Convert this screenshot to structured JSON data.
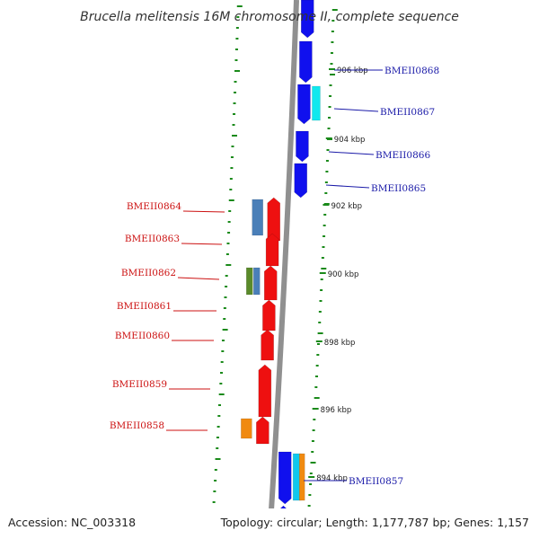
{
  "title": "Brucella melitensis 16M chromosome II, complete sequence",
  "footer": {
    "accession": "Accession: NC_003318",
    "topology": "Topology: circular; Length: 1,177,787 bp; Genes: 1,157"
  },
  "colors": {
    "forward_labels": "#1a1aa8",
    "reverse_labels": "#cc1111",
    "tick_marks": "#1a8a1a",
    "backbone": "#909090"
  },
  "scale_ticks": [
    "906 kbp",
    "904 kbp",
    "902 kbp",
    "900 kbp",
    "898 kbp",
    "896 kbp",
    "894 kbp"
  ],
  "forward_genes": [
    {
      "label": "BMEII0868",
      "color": "#1010ee",
      "strand": "+"
    },
    {
      "label": "BMEII0867",
      "color": "#1010ee",
      "strand": "+",
      "extra_colors": [
        "#10e8ee"
      ]
    },
    {
      "label": "BMEII0866",
      "color": "#1010ee",
      "strand": "+"
    },
    {
      "label": "BMEII0865",
      "color": "#1010ee",
      "strand": "+"
    },
    {
      "label": "BMEII0857",
      "color": "#1010ee",
      "strand": "+",
      "extra_colors": [
        "#10c8ee",
        "#f08a10"
      ]
    }
  ],
  "reverse_genes": [
    {
      "label": "BMEII0864",
      "color": "#ee1010",
      "strand": "-",
      "extra_colors": [
        "#4a7fb8"
      ]
    },
    {
      "label": "BMEII0863",
      "color": "#ee1010",
      "strand": "-"
    },
    {
      "label": "BMEII0862",
      "color": "#ee1010",
      "strand": "-",
      "extra_colors": [
        "#5a8a2a",
        "#4a7fb8"
      ]
    },
    {
      "label": "BMEII0861",
      "color": "#ee1010",
      "strand": "-"
    },
    {
      "label": "BMEII0860",
      "color": "#ee1010",
      "strand": "-"
    },
    {
      "label": "BMEII0859",
      "color": "#ee1010",
      "strand": "-"
    },
    {
      "label": "BMEII0858",
      "color": "#ee1010",
      "strand": "-",
      "extra_colors": [
        "#f08a10"
      ]
    }
  ]
}
